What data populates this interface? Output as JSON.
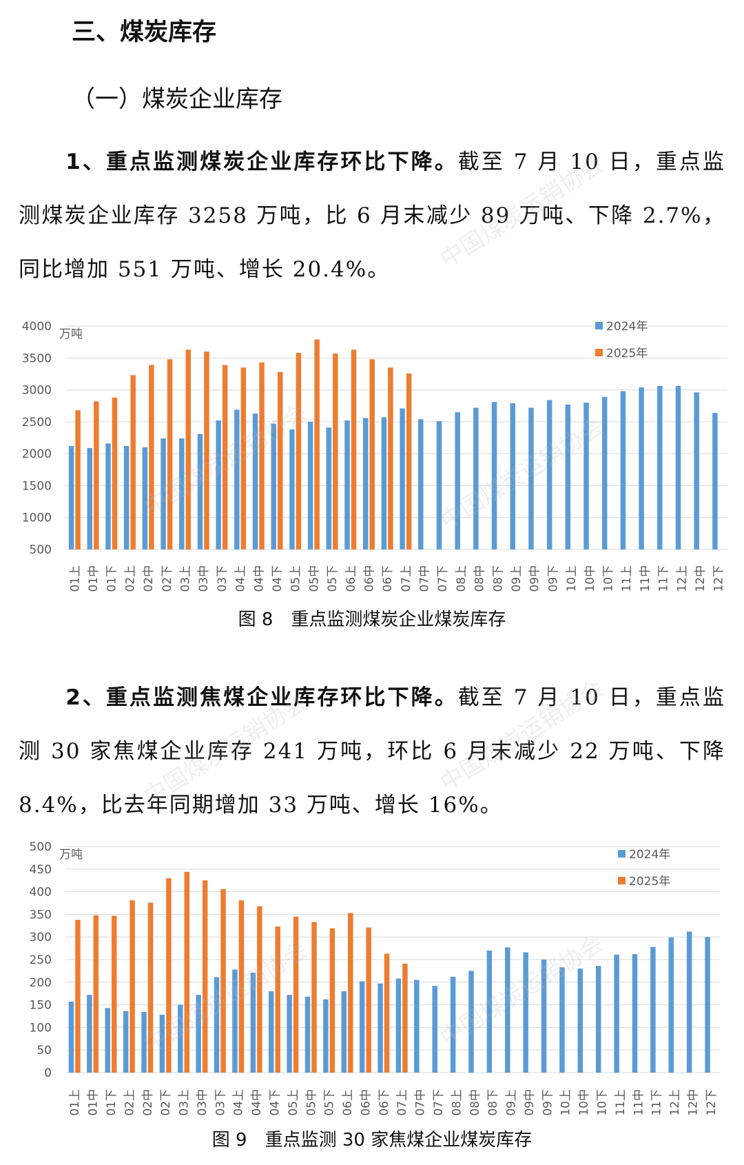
{
  "heading": "三、煤炭库存",
  "subheading": "（一）煤炭企业库存",
  "watermark": "中国煤炭运销协会",
  "paragraphs": [
    {
      "lead": "1、重点监测煤炭企业库存环比下降。",
      "body": "截至 7 月 10 日，重点监测煤炭企业库存 3258 万吨，比 6 月末减少 89 万吨、下降 2.7%，同比增加 551 万吨、增长 20.4%。"
    },
    {
      "lead": "2、重点监测焦煤企业库存环比下降。",
      "body": "截至 7 月 10 日，重点监测 30 家焦煤企业库存 241 万吨，环比 6 月末减少 22 万吨、下降 8.4%，比去年同期增加 33 万吨、增长 16%。"
    }
  ],
  "chart_data": [
    {
      "type": "bar",
      "caption": "图 8　重点监测煤炭企业煤炭库存",
      "y_unit": "万吨",
      "categories": [
        "01上",
        "01中",
        "01下",
        "02上",
        "02中",
        "02下",
        "03上",
        "03中",
        "03下",
        "04上",
        "04中",
        "04下",
        "05上",
        "05中",
        "05下",
        "06上",
        "06中",
        "06下",
        "07上",
        "07中",
        "07下",
        "08上",
        "08中",
        "08下",
        "09上",
        "09中",
        "09下",
        "10上",
        "10中",
        "10下",
        "11上",
        "11中",
        "11下",
        "12上",
        "12中",
        "12下"
      ],
      "series": [
        {
          "name": "2024年",
          "color": "#5b9bd5",
          "values": [
            2120,
            2090,
            2160,
            2120,
            2100,
            2240,
            2240,
            2310,
            2520,
            2690,
            2630,
            2470,
            2380,
            2500,
            2410,
            2520,
            2560,
            2570,
            2710,
            2540,
            2510,
            2650,
            2720,
            2810,
            2790,
            2720,
            2840,
            2770,
            2800,
            2890,
            2980,
            3040,
            3060,
            3060,
            2960,
            2640
          ]
        },
        {
          "name": "2025年",
          "color": "#ed7d31",
          "values": [
            2680,
            2820,
            2880,
            3230,
            3390,
            3480,
            3630,
            3600,
            3390,
            3350,
            3430,
            3280,
            3580,
            3790,
            3570,
            3630,
            3480,
            3350,
            3258,
            null,
            null,
            null,
            null,
            null,
            null,
            null,
            null,
            null,
            null,
            null,
            null,
            null,
            null,
            null,
            null,
            null
          ]
        }
      ],
      "ylim": [
        500,
        4000
      ],
      "yticks": [
        500,
        1000,
        1500,
        2000,
        2500,
        3000,
        3500,
        4000
      ],
      "grid": true,
      "legend": "top-right"
    },
    {
      "type": "bar",
      "caption": "图 9　重点监测 30 家焦煤企业煤炭库存",
      "y_unit": "万吨",
      "categories": [
        "01上",
        "01中",
        "01下",
        "02上",
        "02中",
        "02下",
        "03上",
        "03中",
        "03下",
        "04上",
        "04中",
        "04下",
        "05上",
        "05中",
        "05下",
        "06上",
        "06中",
        "06下",
        "07上",
        "07中",
        "07下",
        "08上",
        "08中",
        "08下",
        "09上",
        "09中",
        "09下",
        "10上",
        "10中",
        "10下",
        "11上",
        "11中",
        "11下",
        "12上",
        "12中",
        "12下"
      ],
      "series": [
        {
          "name": "2024年",
          "color": "#5b9bd5",
          "values": [
            157,
            172,
            143,
            136,
            134,
            128,
            150,
            172,
            211,
            228,
            221,
            180,
            172,
            168,
            162,
            180,
            202,
            197,
            208,
            205,
            192,
            212,
            225,
            270,
            277,
            266,
            250,
            233,
            230,
            236,
            261,
            262,
            278,
            299,
            312,
            300
          ]
        },
        {
          "name": "2025年",
          "color": "#ed7d31",
          "values": [
            338,
            348,
            347,
            381,
            376,
            430,
            444,
            425,
            406,
            381,
            368,
            323,
            345,
            333,
            319,
            353,
            321,
            263,
            241,
            null,
            null,
            null,
            null,
            null,
            null,
            null,
            null,
            null,
            null,
            null,
            null,
            null,
            null,
            null,
            null,
            null
          ]
        }
      ],
      "ylim": [
        0,
        500
      ],
      "yticks": [
        0,
        50,
        100,
        150,
        200,
        250,
        300,
        350,
        400,
        450,
        500
      ],
      "grid": true,
      "legend": "top-right"
    }
  ]
}
